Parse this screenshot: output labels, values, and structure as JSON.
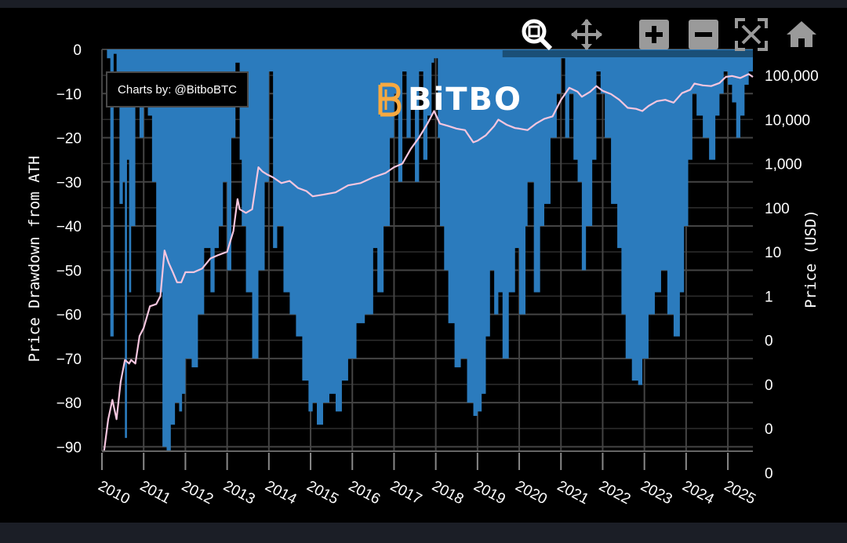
{
  "chart_data": {
    "type": "area",
    "ylabel": "Price Drawdown from ATH",
    "y2label": "Price (USD)",
    "ylim": [
      -91,
      0
    ],
    "y_ticks": [
      "0",
      "−10",
      "−20",
      "−30",
      "−40",
      "−50",
      "−60",
      "−70",
      "−80",
      "−90"
    ],
    "y_tick_values": [
      0,
      -10,
      -20,
      -30,
      -40,
      -50,
      -60,
      -70,
      -80,
      -90
    ],
    "y2_ticks": [
      "100,000",
      "10,000",
      "1,000",
      "100",
      "10",
      "1",
      "0",
      "0",
      "0",
      "0"
    ],
    "y2_scale": "log",
    "x_ticks": [
      "2010",
      "2011",
      "2012",
      "2013",
      "2014",
      "2015",
      "2016",
      "2017",
      "2018",
      "2019",
      "2020",
      "2021",
      "2022",
      "2023",
      "2024",
      "2025"
    ],
    "xlim": [
      2010.0,
      2025.6
    ],
    "grid": true,
    "drawdown_color": "#2b7bbd",
    "price_color": "#f6c6df",
    "drawdown": {
      "x": [
        2010.0,
        2010.12,
        2010.2,
        2010.28,
        2010.35,
        2010.42,
        2010.5,
        2010.55,
        2010.6,
        2010.65,
        2010.7,
        2010.8,
        2010.9,
        2011.0,
        2011.1,
        2011.2,
        2011.3,
        2011.45,
        2011.55,
        2011.65,
        2011.75,
        2011.85,
        2011.92,
        2012.0,
        2012.15,
        2012.3,
        2012.45,
        2012.6,
        2012.7,
        2012.8,
        2012.9,
        2013.0,
        2013.1,
        2013.2,
        2013.3,
        2013.35,
        2013.45,
        2013.6,
        2013.75,
        2013.9,
        2014.0,
        2014.1,
        2014.2,
        2014.35,
        2014.5,
        2014.65,
        2014.8,
        2014.95,
        2015.05,
        2015.15,
        2015.3,
        2015.45,
        2015.6,
        2015.75,
        2015.9,
        2016.1,
        2016.3,
        2016.5,
        2016.6,
        2016.75,
        2016.9,
        2017.0,
        2017.1,
        2017.2,
        2017.3,
        2017.4,
        2017.5,
        2017.6,
        2017.7,
        2017.8,
        2017.9,
        2017.96,
        2018.05,
        2018.1,
        2018.2,
        2018.3,
        2018.45,
        2018.6,
        2018.75,
        2018.9,
        2019.0,
        2019.1,
        2019.2,
        2019.3,
        2019.4,
        2019.5,
        2019.6,
        2019.75,
        2019.9,
        2020.0,
        2020.15,
        2020.2,
        2020.35,
        2020.5,
        2020.6,
        2020.75,
        2020.9,
        2021.0,
        2021.1,
        2021.2,
        2021.3,
        2021.4,
        2021.5,
        2021.6,
        2021.75,
        2021.85,
        2021.95,
        2022.05,
        2022.2,
        2022.35,
        2022.45,
        2022.55,
        2022.7,
        2022.85,
        2022.95,
        2023.1,
        2023.25,
        2023.4,
        2023.55,
        2023.7,
        2023.85,
        2023.95,
        2024.05,
        2024.15,
        2024.25,
        2024.4,
        2024.55,
        2024.7,
        2024.8,
        2024.9,
        2025.0,
        2025.1,
        2025.2,
        2025.3,
        2025.4,
        2025.5,
        2025.6
      ],
      "y": [
        0,
        -2,
        -65,
        -1,
        -5,
        -35,
        -30,
        -88,
        -25,
        -55,
        -40,
        -10,
        -20,
        -5,
        -15,
        -30,
        -55,
        -90,
        -91,
        -85,
        -80,
        -82,
        -78,
        -70,
        -72,
        -60,
        -45,
        -55,
        -45,
        -40,
        -30,
        -50,
        -20,
        -3,
        -25,
        -40,
        -55,
        -70,
        -50,
        -30,
        -5,
        -45,
        -40,
        -55,
        -60,
        -65,
        -75,
        -82,
        -80,
        -85,
        -80,
        -78,
        -82,
        -75,
        -70,
        -62,
        -60,
        -45,
        -55,
        -40,
        -20,
        -10,
        -30,
        -5,
        -20,
        -10,
        -30,
        -5,
        -25,
        -15,
        -3,
        -2,
        -20,
        -40,
        -50,
        -62,
        -72,
        -70,
        -80,
        -83,
        -82,
        -78,
        -65,
        -50,
        -60,
        -55,
        -70,
        -55,
        -45,
        -60,
        -40,
        -30,
        -55,
        -40,
        -35,
        -20,
        -10,
        -2,
        -20,
        -10,
        -25,
        -30,
        -50,
        -40,
        -25,
        -5,
        -10,
        -20,
        -35,
        -45,
        -60,
        -70,
        -75,
        -76,
        -70,
        -60,
        -55,
        -50,
        -60,
        -65,
        -55,
        -40,
        -25,
        -10,
        -15,
        -20,
        -25,
        -15,
        -10,
        -5,
        -8,
        -12,
        -20,
        -15,
        -8,
        -5,
        -25
      ]
    },
    "price": {
      "x": [
        2010.0,
        2010.05,
        2010.15,
        2010.25,
        2010.35,
        2010.45,
        2010.55,
        2010.65,
        2010.7,
        2010.8,
        2010.9,
        2011.0,
        2011.15,
        2011.3,
        2011.4,
        2011.5,
        2011.6,
        2011.7,
        2011.8,
        2011.9,
        2012.0,
        2012.2,
        2012.4,
        2012.6,
        2012.8,
        2013.0,
        2013.15,
        2013.25,
        2013.3,
        2013.45,
        2013.6,
        2013.75,
        2013.85,
        2013.95,
        2014.1,
        2014.3,
        2014.5,
        2014.7,
        2014.9,
        2015.05,
        2015.3,
        2015.6,
        2015.9,
        2016.2,
        2016.5,
        2016.8,
        2017.0,
        2017.2,
        2017.4,
        2017.6,
        2017.8,
        2017.96,
        2018.1,
        2018.3,
        2018.5,
        2018.7,
        2018.9,
        2019.0,
        2019.2,
        2019.4,
        2019.5,
        2019.7,
        2019.9,
        2020.0,
        2020.2,
        2020.4,
        2020.6,
        2020.8,
        2021.0,
        2021.2,
        2021.4,
        2021.5,
        2021.7,
        2021.85,
        2022.0,
        2022.2,
        2022.4,
        2022.6,
        2022.8,
        2022.95,
        2023.1,
        2023.3,
        2023.5,
        2023.7,
        2023.9,
        2024.1,
        2024.2,
        2024.4,
        2024.6,
        2024.8,
        2024.95,
        2025.1,
        2025.3,
        2025.5,
        2025.6
      ],
      "y": [
        0.0006,
        0.0006,
        0.003,
        0.008,
        0.003,
        0.02,
        0.06,
        0.05,
        0.06,
        0.05,
        0.2,
        0.3,
        0.9,
        1.0,
        1.5,
        15,
        8,
        5,
        3,
        3,
        5,
        5,
        6,
        10,
        12,
        14,
        40,
        200,
        120,
        100,
        120,
        1000,
        800,
        700,
        600,
        450,
        500,
        350,
        300,
        230,
        250,
        280,
        400,
        450,
        600,
        750,
        1000,
        1200,
        2500,
        4500,
        9000,
        17000,
        9000,
        8000,
        7000,
        6500,
        3500,
        3800,
        5000,
        8000,
        11000,
        8500,
        7200,
        7000,
        6500,
        9000,
        11500,
        13000,
        30000,
        55000,
        45000,
        35000,
        45000,
        60000,
        47000,
        40000,
        30000,
        20000,
        19000,
        17000,
        22000,
        28000,
        30000,
        26000,
        42000,
        50000,
        68000,
        62000,
        60000,
        70000,
        95000,
        100000,
        90000,
        110000,
        95000
      ]
    }
  },
  "credit": "Charts by: @BitboBTC",
  "logo": {
    "text": "BiTBO",
    "color": "#f7a940"
  },
  "toolbar": {
    "tools": [
      {
        "name": "zoom-icon",
        "active": true
      },
      {
        "name": "pan-icon",
        "active": false
      },
      {
        "name": "zoom-in-icon",
        "active": false
      },
      {
        "name": "zoom-out-icon",
        "active": false
      },
      {
        "name": "autoscale-icon",
        "active": false
      },
      {
        "name": "reset-home-icon",
        "active": false
      }
    ]
  }
}
